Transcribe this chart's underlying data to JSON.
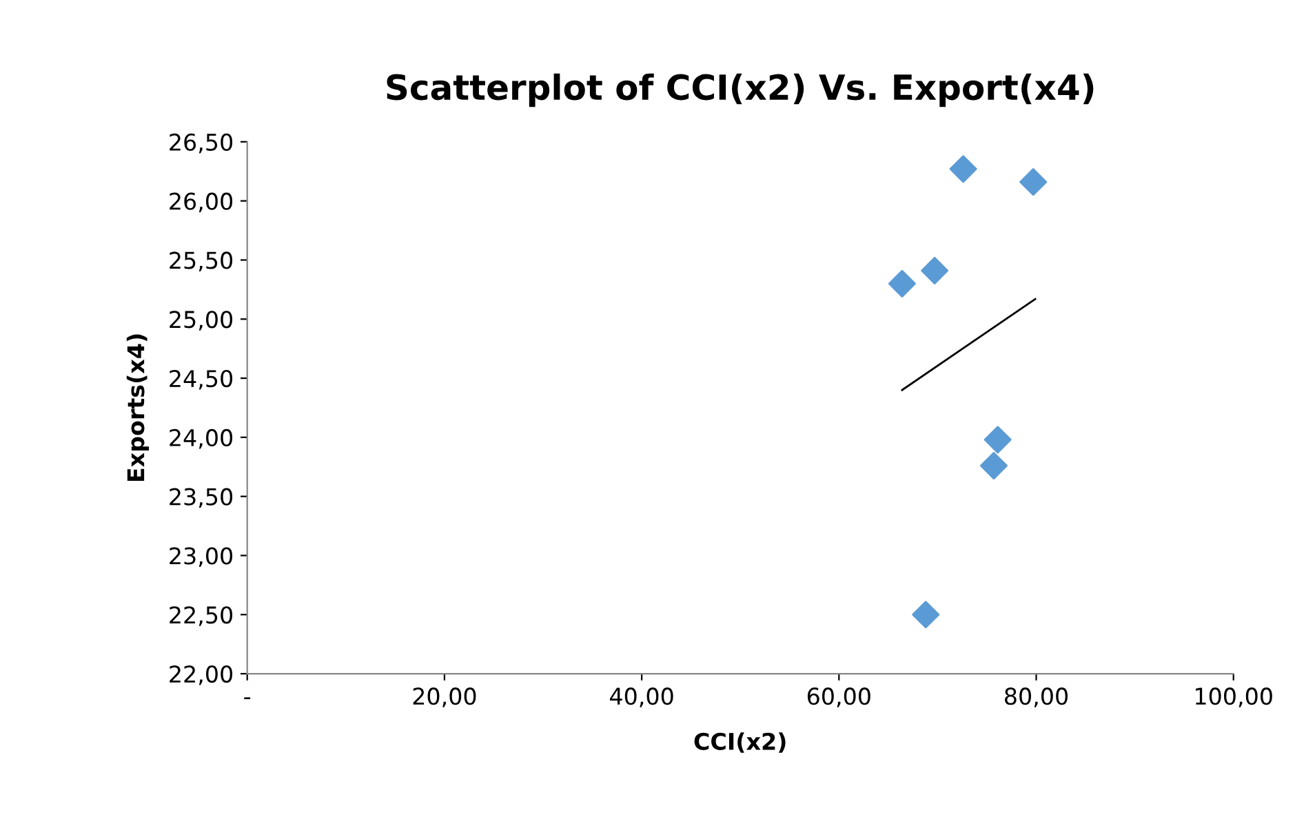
{
  "chart_data": {
    "type": "scatter",
    "title": "Scatterplot of CCI(x2) Vs. Export(x4)",
    "xlabel": "CCI(x2)",
    "ylabel": "Exports(x4)",
    "series": [
      {
        "color": "#5b9bd5",
        "marker": "diamond",
        "x": [
          72.6,
          79.7,
          69.7,
          66.4,
          76.1,
          75.7,
          68.8
        ],
        "values": [
          26.27,
          26.16,
          25.41,
          25.3,
          23.98,
          23.76,
          22.5
        ]
      },
      {
        "type": "line",
        "color": "#000000",
        "marker": "none",
        "x": [
          66.4,
          79.9
        ],
        "values": [
          24.4,
          25.17
        ]
      }
    ],
    "xlim": [
      0,
      100
    ],
    "xticks": [
      {
        "value": 0,
        "label": "-"
      },
      {
        "value": 20,
        "label": "20,00"
      },
      {
        "value": 40,
        "label": "40,00"
      },
      {
        "value": 60,
        "label": "60,00"
      },
      {
        "value": 80,
        "label": "80,00"
      },
      {
        "value": 100,
        "label": "100,00"
      }
    ],
    "ylim": [
      22,
      26.5
    ],
    "yticks": [
      {
        "value": 22,
        "label": "22,00"
      },
      {
        "value": 22.5,
        "label": "22,50"
      },
      {
        "value": 23,
        "label": "23,00"
      },
      {
        "value": 23.5,
        "label": "23,50"
      },
      {
        "value": 24,
        "label": "24,00"
      },
      {
        "value": 24.5,
        "label": "24,50"
      },
      {
        "value": 25,
        "label": "25,00"
      },
      {
        "value": 25.5,
        "label": "25,50"
      },
      {
        "value": 26,
        "label": "26,00"
      },
      {
        "value": 26.5,
        "label": "26,50"
      }
    ],
    "grid": false,
    "legend": false
  }
}
